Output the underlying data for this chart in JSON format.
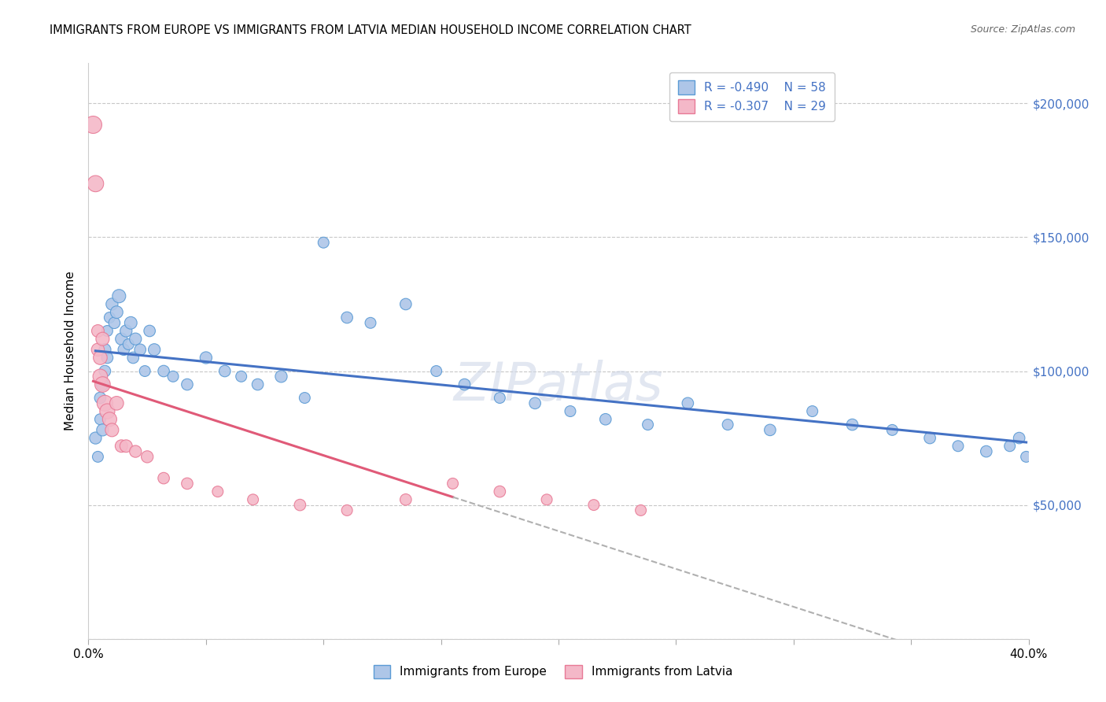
{
  "title": "IMMIGRANTS FROM EUROPE VS IMMIGRANTS FROM LATVIA MEDIAN HOUSEHOLD INCOME CORRELATION CHART",
  "source": "Source: ZipAtlas.com",
  "ylabel": "Median Household Income",
  "yticks": [
    0,
    50000,
    100000,
    150000,
    200000
  ],
  "ytick_labels": [
    "",
    "$50,000",
    "$100,000",
    "$150,000",
    "$200,000"
  ],
  "xlim": [
    0.0,
    0.4
  ],
  "ylim": [
    0,
    215000
  ],
  "legend_r_europe": "-0.490",
  "legend_n_europe": "58",
  "legend_r_latvia": "-0.307",
  "legend_n_latvia": "29",
  "europe_color": "#aec6e8",
  "europe_edge": "#5b9bd5",
  "latvia_color": "#f4b8c8",
  "latvia_edge": "#e87a96",
  "trendline_europe_color": "#4472c4",
  "trendline_latvia_color": "#e05a78",
  "trendline_dashed_color": "#b0b0b0",
  "background_color": "#ffffff",
  "grid_color": "#c8c8c8",
  "europe_points_x": [
    0.003,
    0.004,
    0.005,
    0.005,
    0.006,
    0.006,
    0.007,
    0.007,
    0.008,
    0.008,
    0.009,
    0.01,
    0.011,
    0.012,
    0.013,
    0.014,
    0.015,
    0.016,
    0.017,
    0.018,
    0.019,
    0.02,
    0.022,
    0.024,
    0.026,
    0.028,
    0.032,
    0.036,
    0.042,
    0.05,
    0.058,
    0.065,
    0.072,
    0.082,
    0.092,
    0.1,
    0.11,
    0.12,
    0.135,
    0.148,
    0.16,
    0.175,
    0.19,
    0.205,
    0.22,
    0.238,
    0.255,
    0.272,
    0.29,
    0.308,
    0.325,
    0.342,
    0.358,
    0.37,
    0.382,
    0.392,
    0.396,
    0.399
  ],
  "europe_points_y": [
    75000,
    68000,
    82000,
    90000,
    78000,
    95000,
    100000,
    108000,
    115000,
    105000,
    120000,
    125000,
    118000,
    122000,
    128000,
    112000,
    108000,
    115000,
    110000,
    118000,
    105000,
    112000,
    108000,
    100000,
    115000,
    108000,
    100000,
    98000,
    95000,
    105000,
    100000,
    98000,
    95000,
    98000,
    90000,
    148000,
    120000,
    118000,
    125000,
    100000,
    95000,
    90000,
    88000,
    85000,
    82000,
    80000,
    88000,
    80000,
    78000,
    85000,
    80000,
    78000,
    75000,
    72000,
    70000,
    72000,
    75000,
    68000
  ],
  "europe_sizes": [
    120,
    100,
    100,
    110,
    120,
    130,
    110,
    120,
    100,
    110,
    100,
    120,
    110,
    130,
    150,
    120,
    110,
    120,
    100,
    130,
    110,
    120,
    110,
    100,
    110,
    120,
    110,
    100,
    110,
    120,
    110,
    100,
    110,
    120,
    100,
    100,
    110,
    100,
    110,
    100,
    110,
    100,
    110,
    100,
    110,
    100,
    110,
    100,
    110,
    100,
    110,
    100,
    110,
    100,
    110,
    100,
    110,
    100
  ],
  "latvia_points_x": [
    0.002,
    0.003,
    0.004,
    0.004,
    0.005,
    0.005,
    0.006,
    0.006,
    0.007,
    0.008,
    0.009,
    0.01,
    0.012,
    0.014,
    0.016,
    0.02,
    0.025,
    0.032,
    0.042,
    0.055,
    0.07,
    0.09,
    0.11,
    0.135,
    0.155,
    0.175,
    0.195,
    0.215,
    0.235
  ],
  "latvia_points_y": [
    192000,
    170000,
    115000,
    108000,
    105000,
    98000,
    112000,
    95000,
    88000,
    85000,
    82000,
    78000,
    88000,
    72000,
    72000,
    70000,
    68000,
    60000,
    58000,
    55000,
    52000,
    50000,
    48000,
    52000,
    58000,
    55000,
    52000,
    50000,
    48000
  ],
  "latvia_sizes": [
    250,
    220,
    130,
    140,
    160,
    180,
    150,
    200,
    210,
    190,
    170,
    150,
    160,
    130,
    130,
    120,
    120,
    110,
    110,
    100,
    100,
    110,
    100,
    110,
    100,
    110,
    100,
    100,
    100
  ],
  "trendline_europe_start_x": 0.003,
  "trendline_europe_end_x": 0.399,
  "trendline_latvia_solid_start_x": 0.002,
  "trendline_latvia_solid_end_x": 0.155,
  "trendline_latvia_dash_start_x": 0.155,
  "trendline_latvia_dash_end_x": 0.4
}
